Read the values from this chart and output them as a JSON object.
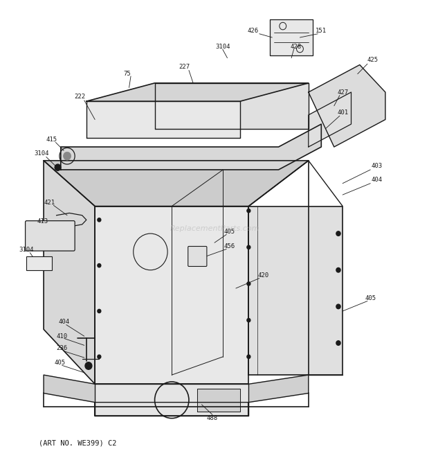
{
  "bg_color": "#ffffff",
  "line_color": "#1a1a1a",
  "label_color": "#1a1a1a",
  "watermark": "ReplacementParts.com",
  "footer": "(ART NO. WE399) C2"
}
